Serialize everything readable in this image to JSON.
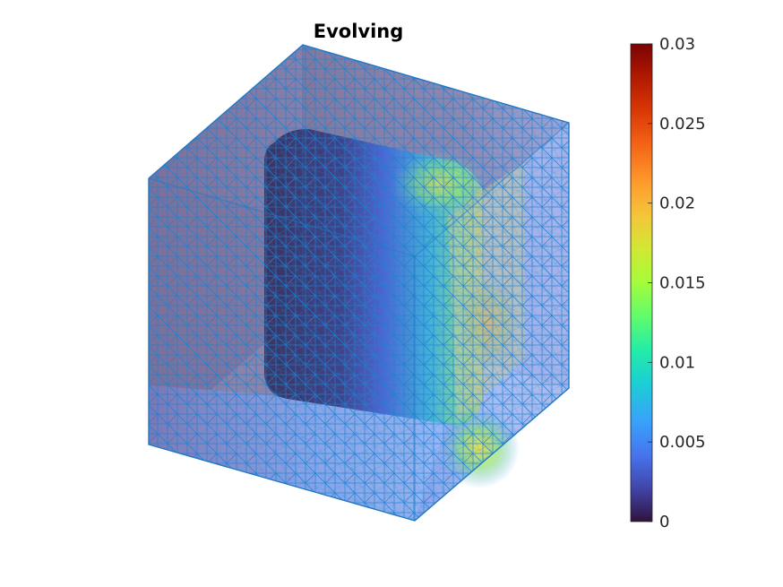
{
  "chart_data": {
    "type": "heatmap",
    "title": "Evolving",
    "colormap": "turbo",
    "colorbar": {
      "range": [
        0,
        0.03
      ],
      "ticks": [
        0,
        0.005,
        0.01,
        0.015,
        0.02,
        0.025,
        0.03
      ],
      "tick_labels": [
        "0",
        "0.005",
        "0.01",
        "0.015",
        "0.02",
        "0.025",
        "0.03"
      ],
      "placement": "right"
    },
    "surface": {
      "shape": "cube with cubic cavity",
      "mesh": "triangulated, edges shown",
      "edge_color": "#1f7fd0",
      "face_transparency": true,
      "value_min_region": "inner cavity (left/top)",
      "value_max_region": "lower-right front edge",
      "value_max": 0.022
    }
  }
}
